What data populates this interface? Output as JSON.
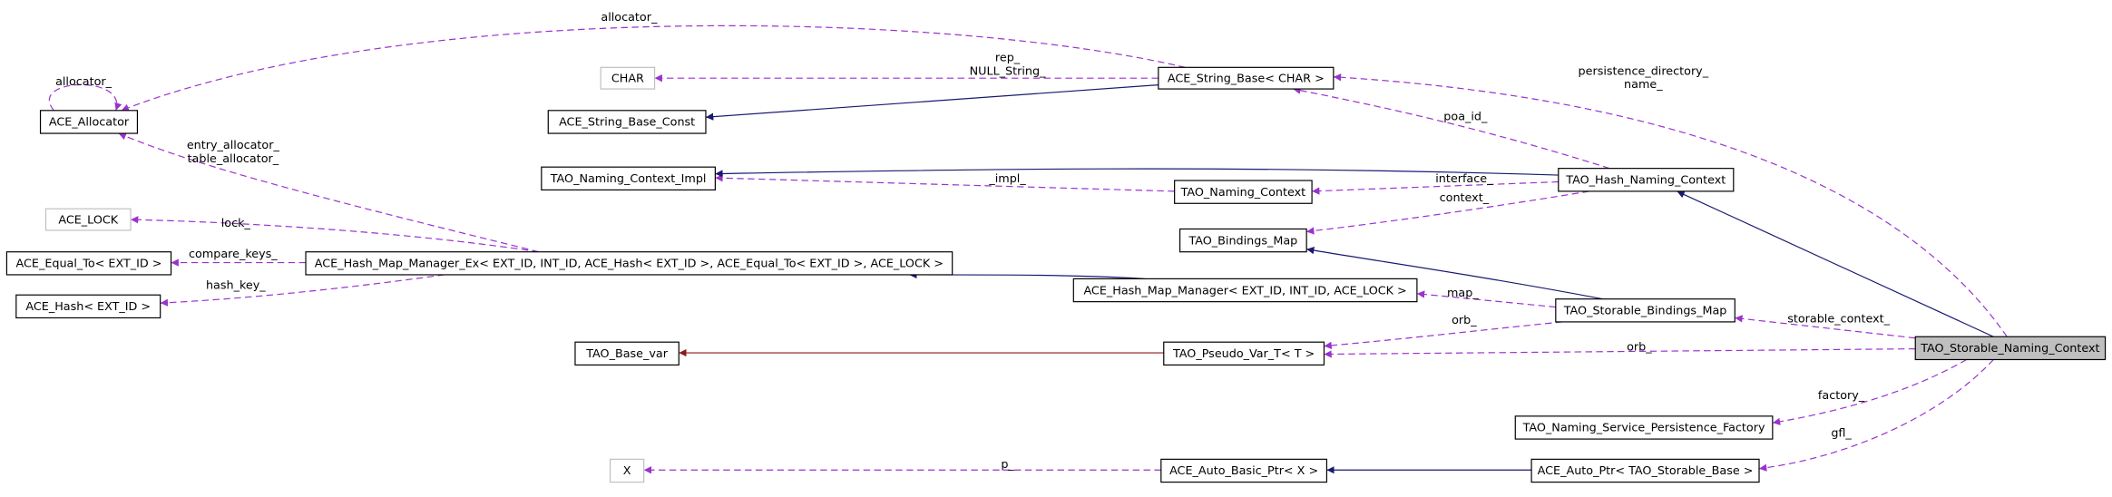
{
  "nodes": [
    {
      "label": "ACE_Allocator"
    },
    {
      "label": "CHAR"
    },
    {
      "label": "ACE_String_Base< CHAR >"
    },
    {
      "label": "ACE_String_Base_Const"
    },
    {
      "label": "TAO_Naming_Context_Impl"
    },
    {
      "label": "TAO_Naming_Context"
    },
    {
      "label": "TAO_Hash_Naming_Context"
    },
    {
      "label": "ACE_LOCK"
    },
    {
      "label": "TAO_Bindings_Map"
    },
    {
      "label": "ACE_Equal_To< EXT_ID >"
    },
    {
      "label": "ACE_Hash_Map_Manager_Ex< EXT_ID, INT_ID, ACE_Hash< EXT_ID >, ACE_Equal_To< EXT_ID >, ACE_LOCK >"
    },
    {
      "label": "ACE_Hash< EXT_ID >"
    },
    {
      "label": "ACE_Hash_Map_Manager< EXT_ID, INT_ID, ACE_LOCK >"
    },
    {
      "label": "TAO_Storable_Bindings_Map"
    },
    {
      "label": "TAO_Base_var"
    },
    {
      "label": "TAO_Pseudo_Var_T< T >"
    },
    {
      "label": "TAO_Storable_Naming_Context"
    },
    {
      "label": "TAO_Naming_Service_Persistence_Factory"
    },
    {
      "label": "X"
    },
    {
      "label": "ACE_Auto_Basic_Ptr< X >"
    },
    {
      "label": "ACE_Auto_Ptr< TAO_Storable_Base >"
    }
  ],
  "edge_labels": [
    "allocator_",
    "allocator_",
    "rep_",
    "NULL_String_",
    "persistence_directory_",
    "name_",
    "entry_allocator_",
    "table_allocator_",
    "poa_id_",
    "_impl_",
    "interface_",
    "context_",
    "lock_",
    "compare_keys_",
    "hash_key_",
    "map_",
    "orb_",
    "storable_context_",
    "orb_",
    "factory_",
    "gfl_",
    "p_"
  ]
}
